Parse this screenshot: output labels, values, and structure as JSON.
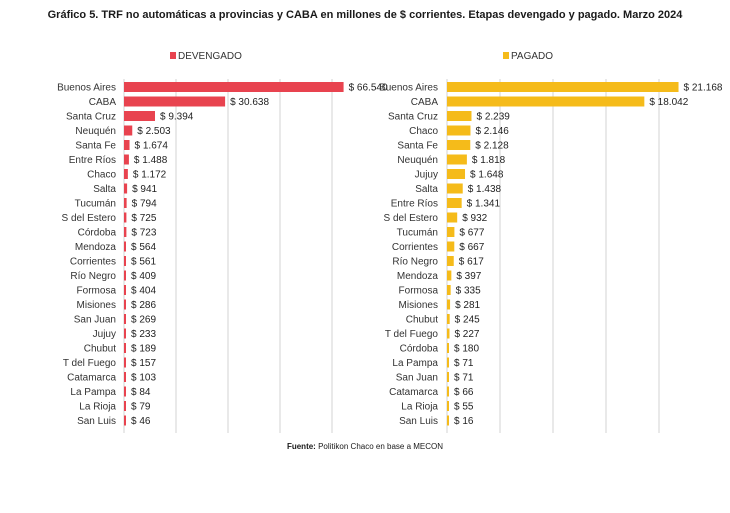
{
  "title": "Gráfico 5. TRF no automáticas a provincias y CABA en millones de $ corrientes. Etapas devengado y pagado. Marzo 2024",
  "source_label": "Fuente:",
  "source_text": "Politikon Chaco en base a MECON",
  "colors": {
    "devengado": "#e8434f",
    "pagado": "#f5bb1a",
    "grid": "#d3d3d3"
  },
  "chart_data": [
    {
      "type": "bar",
      "orientation": "horizontal",
      "legend": "DEVENGADO",
      "legend_position": "top",
      "grid": true,
      "categories": [
        "Buenos Aires",
        "CABA",
        "Santa Cruz",
        "Neuquén",
        "Santa Fe",
        "Entre Ríos",
        "Chaco",
        "Salta",
        "Tucumán",
        "S del Estero",
        "Córdoba",
        "Mendoza",
        "Corrientes",
        "Río Negro",
        "Formosa",
        "Misiones",
        "San Juan",
        "Jujuy",
        "Chubut",
        "T del Fuego",
        "Catamarca",
        "La Pampa",
        "La Rioja",
        "San Luis"
      ],
      "values": [
        66540,
        30638,
        9394,
        2503,
        1674,
        1488,
        1172,
        941,
        794,
        725,
        723,
        564,
        561,
        409,
        404,
        286,
        269,
        233,
        189,
        157,
        103,
        84,
        79,
        46
      ],
      "labels": [
        "$ 66.540",
        "$ 30.638",
        "$ 9.394",
        "$ 2.503",
        "$ 1.674",
        "$ 1.488",
        "$ 1.172",
        "$ 941",
        "$ 794",
        "$ 725",
        "$ 723",
        "$ 564",
        "$ 561",
        "$ 409",
        "$ 404",
        "$ 286",
        "$ 269",
        "$ 233",
        "$ 189",
        "$ 157",
        "$ 103",
        "$ 84",
        "$ 79",
        "$ 46"
      ],
      "xlim": [
        0,
        70000
      ]
    },
    {
      "type": "bar",
      "orientation": "horizontal",
      "legend": "PAGADO",
      "legend_position": "top",
      "grid": true,
      "categories": [
        "Buenos Aires",
        "CABA",
        "Santa Cruz",
        "Chaco",
        "Santa Fe",
        "Neuquén",
        "Jujuy",
        "Salta",
        "Entre Ríos",
        "S del Estero",
        "Tucumán",
        "Corrientes",
        "Río Negro",
        "Mendoza",
        "Formosa",
        "Misiones",
        "Chubut",
        "T del Fuego",
        "Córdoba",
        "La Pampa",
        "San Juan",
        "Catamarca",
        "La Rioja",
        "San Luis"
      ],
      "values": [
        21168,
        18042,
        2239,
        2146,
        2128,
        1818,
        1648,
        1438,
        1341,
        932,
        677,
        667,
        617,
        397,
        335,
        281,
        245,
        227,
        180,
        71,
        71,
        66,
        55,
        16
      ],
      "labels": [
        "$ 21.168",
        "$ 18.042",
        "$ 2.239",
        "$ 2.146",
        "$ 2.128",
        "$ 1.818",
        "$ 1.648",
        "$ 1.438",
        "$ 1.341",
        "$ 932",
        "$ 677",
        "$ 667",
        "$ 617",
        "$ 397",
        "$ 335",
        "$ 281",
        "$ 245",
        "$ 227",
        "$ 180",
        "$ 71",
        "$ 71",
        "$ 66",
        "$ 55",
        "$ 16"
      ],
      "xlim": [
        0,
        22400
      ]
    }
  ]
}
